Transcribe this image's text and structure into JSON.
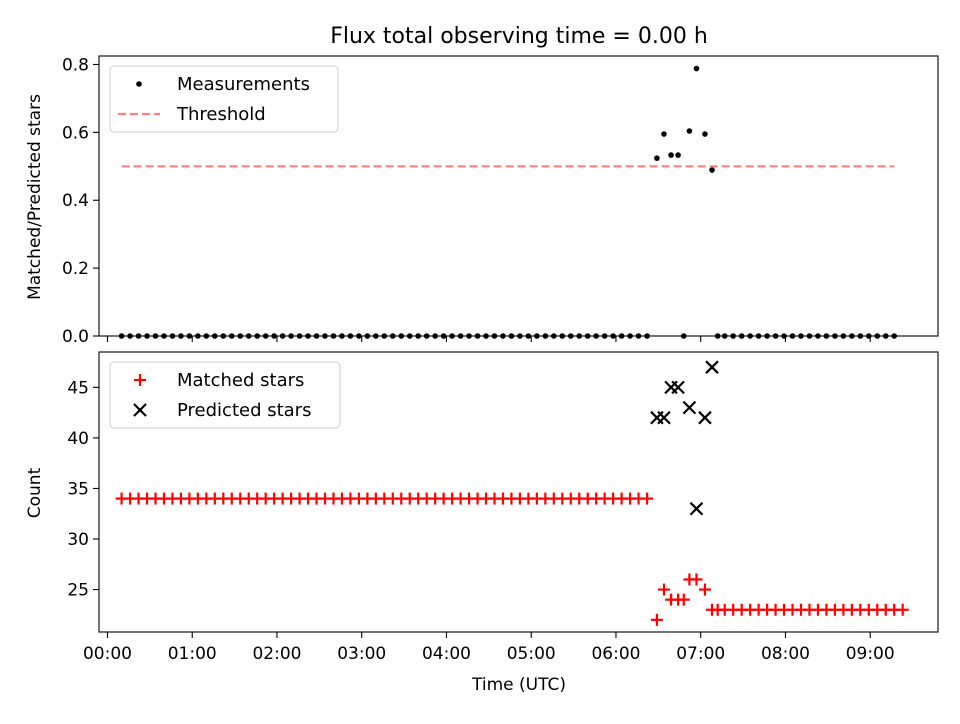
{
  "chart_data": [
    {
      "type": "scatter",
      "title": "Flux total observing time = 0.00 h",
      "xlabel": "",
      "ylabel": "Matched/Predicted stars",
      "xlim": [
        "23:54",
        "09:48"
      ],
      "ylim": [
        0,
        0.825
      ],
      "yticks": [
        "0.0",
        "0.2",
        "0.4",
        "0.6",
        "0.8"
      ],
      "legend": "upper-left",
      "series": [
        {
          "name": "Measurements",
          "marker": "dot",
          "color": "#000000",
          "points": [
            [
              "00:10",
              0
            ],
            [
              "00:16",
              0
            ],
            [
              "00:22",
              0
            ],
            [
              "00:28",
              0
            ],
            [
              "00:34",
              0
            ],
            [
              "00:40",
              0
            ],
            [
              "00:46",
              0
            ],
            [
              "00:52",
              0
            ],
            [
              "00:58",
              0
            ],
            [
              "01:04",
              0
            ],
            [
              "01:10",
              0
            ],
            [
              "01:16",
              0
            ],
            [
              "01:22",
              0
            ],
            [
              "01:28",
              0
            ],
            [
              "01:34",
              0
            ],
            [
              "01:40",
              0
            ],
            [
              "01:46",
              0
            ],
            [
              "01:52",
              0
            ],
            [
              "01:58",
              0
            ],
            [
              "02:04",
              0
            ],
            [
              "02:10",
              0
            ],
            [
              "02:16",
              0
            ],
            [
              "02:22",
              0
            ],
            [
              "02:28",
              0
            ],
            [
              "02:34",
              0
            ],
            [
              "02:40",
              0
            ],
            [
              "02:46",
              0
            ],
            [
              "02:52",
              0
            ],
            [
              "02:58",
              0
            ],
            [
              "03:04",
              0
            ],
            [
              "03:10",
              0
            ],
            [
              "03:16",
              0
            ],
            [
              "03:22",
              0
            ],
            [
              "03:28",
              0
            ],
            [
              "03:34",
              0
            ],
            [
              "03:40",
              0
            ],
            [
              "03:46",
              0
            ],
            [
              "03:52",
              0
            ],
            [
              "03:58",
              0
            ],
            [
              "04:04",
              0
            ],
            [
              "04:10",
              0
            ],
            [
              "04:16",
              0
            ],
            [
              "04:22",
              0
            ],
            [
              "04:28",
              0
            ],
            [
              "04:34",
              0
            ],
            [
              "04:40",
              0
            ],
            [
              "04:46",
              0
            ],
            [
              "04:52",
              0
            ],
            [
              "04:58",
              0
            ],
            [
              "05:04",
              0
            ],
            [
              "05:10",
              0
            ],
            [
              "05:16",
              0
            ],
            [
              "05:22",
              0
            ],
            [
              "05:28",
              0
            ],
            [
              "05:34",
              0
            ],
            [
              "05:40",
              0
            ],
            [
              "05:46",
              0
            ],
            [
              "05:52",
              0
            ],
            [
              "05:58",
              0
            ],
            [
              "06:04",
              0
            ],
            [
              "06:10",
              0
            ],
            [
              "06:16",
              0
            ],
            [
              "06:22",
              0
            ],
            [
              "06:29",
              0.524
            ],
            [
              "06:34",
              0.595
            ],
            [
              "06:39",
              0.533
            ],
            [
              "06:44",
              0.533
            ],
            [
              "06:48",
              0
            ],
            [
              "06:52",
              0.604
            ],
            [
              "06:57",
              0.788
            ],
            [
              "07:03",
              0.595
            ],
            [
              "07:08",
              0.489
            ],
            [
              "07:12",
              0
            ],
            [
              "07:17",
              0
            ],
            [
              "07:23",
              0
            ],
            [
              "07:29",
              0
            ],
            [
              "07:35",
              0
            ],
            [
              "07:41",
              0
            ],
            [
              "07:47",
              0
            ],
            [
              "07:53",
              0
            ],
            [
              "07:59",
              0
            ],
            [
              "08:05",
              0
            ],
            [
              "08:11",
              0
            ],
            [
              "08:17",
              0
            ],
            [
              "08:23",
              0
            ],
            [
              "08:29",
              0
            ],
            [
              "08:35",
              0
            ],
            [
              "08:41",
              0
            ],
            [
              "08:47",
              0
            ],
            [
              "08:53",
              0
            ],
            [
              "08:59",
              0
            ],
            [
              "09:05",
              0
            ],
            [
              "09:11",
              0
            ],
            [
              "09:17",
              0
            ]
          ]
        },
        {
          "name": "Threshold",
          "marker": "dashed-line",
          "color": "#ff7f7f",
          "points": [
            [
              "00:10",
              0.5
            ],
            [
              "09:17",
              0.5
            ]
          ]
        }
      ]
    },
    {
      "type": "scatter",
      "title": "",
      "xlabel": "Time (UTC)",
      "ylabel": "Count",
      "xlim": [
        "23:54",
        "09:48"
      ],
      "ylim": [
        20.8,
        48.5
      ],
      "yticks": [
        "25",
        "30",
        "35",
        "40",
        "45"
      ],
      "xticks": [
        "00:00",
        "01:00",
        "02:00",
        "03:00",
        "04:00",
        "05:00",
        "06:00",
        "07:00",
        "08:00",
        "09:00"
      ],
      "legend": "upper-left",
      "series": [
        {
          "name": "Matched stars",
          "marker": "plus",
          "color": "#ff0000",
          "points": [
            [
              "00:10",
              34
            ],
            [
              "00:16",
              34
            ],
            [
              "00:22",
              34
            ],
            [
              "00:28",
              34
            ],
            [
              "00:34",
              34
            ],
            [
              "00:40",
              34
            ],
            [
              "00:46",
              34
            ],
            [
              "00:52",
              34
            ],
            [
              "00:58",
              34
            ],
            [
              "01:04",
              34
            ],
            [
              "01:10",
              34
            ],
            [
              "01:16",
              34
            ],
            [
              "01:22",
              34
            ],
            [
              "01:28",
              34
            ],
            [
              "01:34",
              34
            ],
            [
              "01:40",
              34
            ],
            [
              "01:46",
              34
            ],
            [
              "01:52",
              34
            ],
            [
              "01:58",
              34
            ],
            [
              "02:04",
              34
            ],
            [
              "02:10",
              34
            ],
            [
              "02:16",
              34
            ],
            [
              "02:22",
              34
            ],
            [
              "02:28",
              34
            ],
            [
              "02:34",
              34
            ],
            [
              "02:40",
              34
            ],
            [
              "02:46",
              34
            ],
            [
              "02:52",
              34
            ],
            [
              "02:58",
              34
            ],
            [
              "03:04",
              34
            ],
            [
              "03:10",
              34
            ],
            [
              "03:16",
              34
            ],
            [
              "03:22",
              34
            ],
            [
              "03:28",
              34
            ],
            [
              "03:34",
              34
            ],
            [
              "03:40",
              34
            ],
            [
              "03:46",
              34
            ],
            [
              "03:52",
              34
            ],
            [
              "03:58",
              34
            ],
            [
              "04:04",
              34
            ],
            [
              "04:10",
              34
            ],
            [
              "04:16",
              34
            ],
            [
              "04:22",
              34
            ],
            [
              "04:28",
              34
            ],
            [
              "04:34",
              34
            ],
            [
              "04:40",
              34
            ],
            [
              "04:46",
              34
            ],
            [
              "04:52",
              34
            ],
            [
              "04:58",
              34
            ],
            [
              "05:04",
              34
            ],
            [
              "05:10",
              34
            ],
            [
              "05:16",
              34
            ],
            [
              "05:22",
              34
            ],
            [
              "05:28",
              34
            ],
            [
              "05:34",
              34
            ],
            [
              "05:40",
              34
            ],
            [
              "05:46",
              34
            ],
            [
              "05:52",
              34
            ],
            [
              "05:58",
              34
            ],
            [
              "06:04",
              34
            ],
            [
              "06:10",
              34
            ],
            [
              "06:16",
              34
            ],
            [
              "06:22",
              34
            ],
            [
              "06:29",
              22
            ],
            [
              "06:34",
              25
            ],
            [
              "06:39",
              24
            ],
            [
              "06:44",
              24
            ],
            [
              "06:48",
              24
            ],
            [
              "06:52",
              26
            ],
            [
              "06:57",
              26
            ],
            [
              "07:03",
              25
            ],
            [
              "07:08",
              23
            ],
            [
              "07:12",
              23
            ],
            [
              "07:17",
              23
            ],
            [
              "07:23",
              23
            ],
            [
              "07:29",
              23
            ],
            [
              "07:35",
              23
            ],
            [
              "07:41",
              23
            ],
            [
              "07:47",
              23
            ],
            [
              "07:53",
              23
            ],
            [
              "07:59",
              23
            ],
            [
              "08:05",
              23
            ],
            [
              "08:11",
              23
            ],
            [
              "08:17",
              23
            ],
            [
              "08:23",
              23
            ],
            [
              "08:29",
              23
            ],
            [
              "08:35",
              23
            ],
            [
              "08:41",
              23
            ],
            [
              "08:47",
              23
            ],
            [
              "08:53",
              23
            ],
            [
              "08:59",
              23
            ],
            [
              "09:05",
              23
            ],
            [
              "09:11",
              23
            ],
            [
              "09:17",
              23
            ],
            [
              "09:23",
              23
            ]
          ]
        },
        {
          "name": "Predicted stars",
          "marker": "x",
          "color": "#000000",
          "points": [
            [
              "06:29",
              42
            ],
            [
              "06:34",
              42
            ],
            [
              "06:39",
              45
            ],
            [
              "06:44",
              45
            ],
            [
              "06:52",
              43
            ],
            [
              "06:57",
              33
            ],
            [
              "07:03",
              42
            ],
            [
              "07:08",
              47
            ]
          ]
        }
      ]
    }
  ]
}
